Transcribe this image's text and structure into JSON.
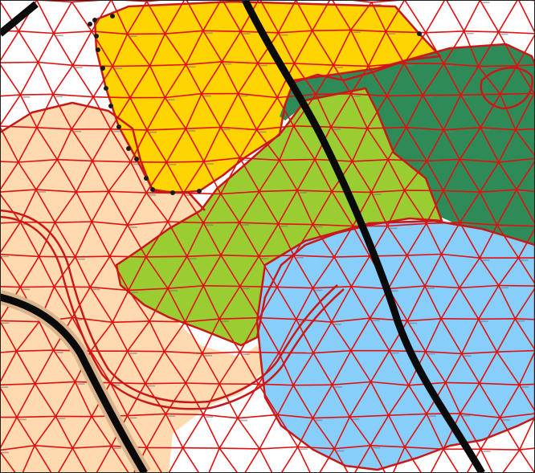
{
  "colors": {
    "background": "#ffffff",
    "mesh_edge": "#e01010",
    "boundary": "#c81818",
    "road": "#0a0a0a",
    "road_casing": "#d9b48c",
    "vertex": "#1a1a1a",
    "frame": "#222222",
    "yellow_zone": "#ffd400",
    "peach_zone": "#ffdab0",
    "light_green_zone": "#9acd32",
    "dark_green_zone": "#2e8b57",
    "light_blue_zone": "#87cefa"
  },
  "zones": [
    {
      "name": "yellow-zone",
      "color_key": "yellow_zone"
    },
    {
      "name": "peach-zone",
      "color_key": "peach_zone"
    },
    {
      "name": "dark-green-zone",
      "color_key": "dark_green_zone"
    },
    {
      "name": "light-green-zone",
      "color_key": "light_green_zone"
    },
    {
      "name": "light-blue-zone",
      "color_key": "light_blue_zone"
    }
  ]
}
